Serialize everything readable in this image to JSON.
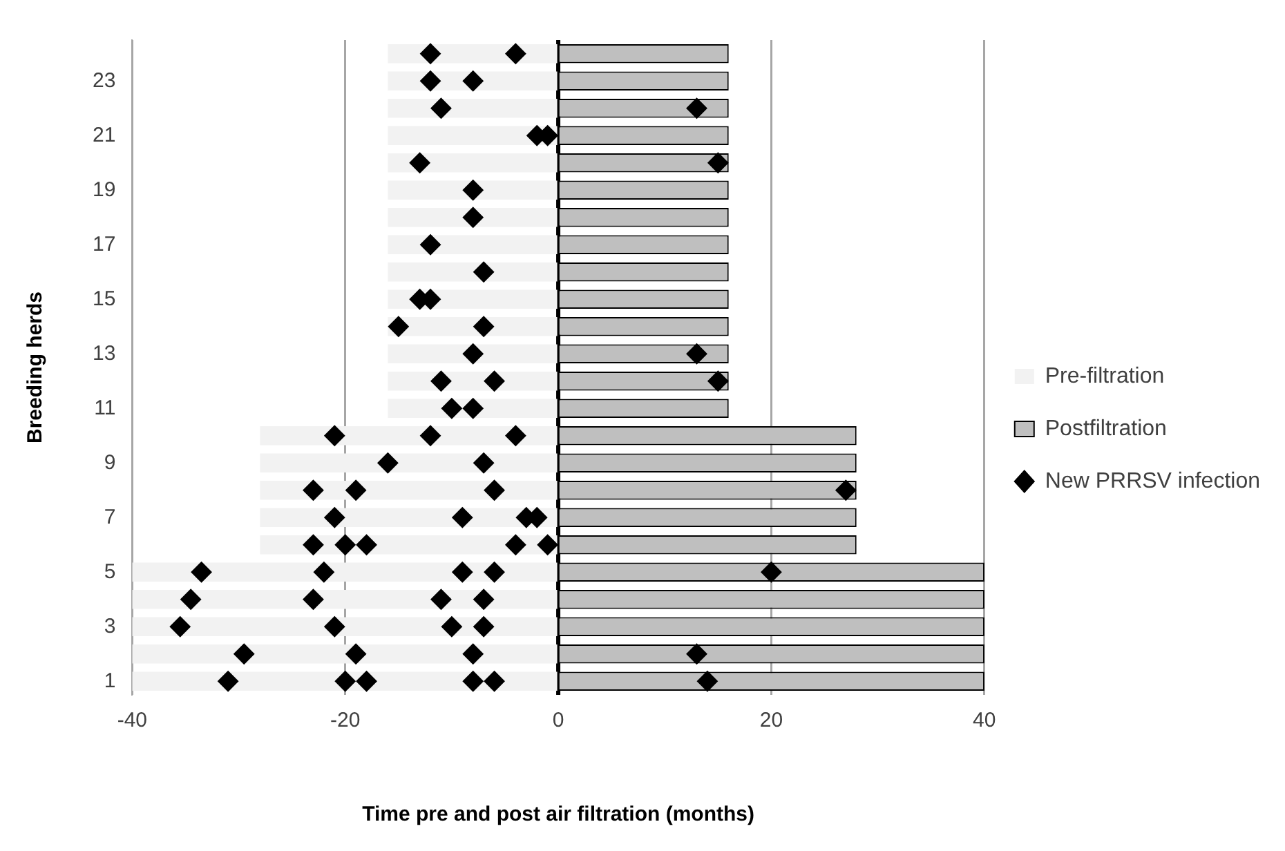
{
  "chart_data": {
    "type": "bar",
    "orientation": "horizontal",
    "stacked": true,
    "xlabel": "Time pre and post air filtration (months)",
    "ylabel": "Breeding herds",
    "categories": [
      null,
      "23",
      null,
      "21",
      null,
      "19",
      null,
      "17",
      null,
      "15",
      null,
      "13",
      null,
      "11",
      null,
      "9",
      null,
      "7",
      null,
      "5",
      null,
      "3",
      null,
      "1"
    ],
    "xlim": [
      -40,
      40
    ],
    "xticks": [
      -40,
      -20,
      0,
      20,
      40
    ],
    "grid": "x",
    "legend": "right",
    "ref_lines": [
      {
        "axis": "x",
        "value": 0,
        "color": "#000000"
      }
    ],
    "series": [
      {
        "name": "Pre-filtration",
        "color": "#f2f2f2",
        "values": [
          -16,
          -16,
          -16,
          -16,
          -16,
          -16,
          -16,
          -16,
          -16,
          -16,
          -16,
          -16,
          -16,
          -16,
          -28,
          -28,
          -28,
          -28,
          -28,
          -40,
          -40,
          -40,
          -40,
          -40
        ]
      },
      {
        "name": "Postfiltration",
        "color": "#bfbfbf",
        "values": [
          16,
          16,
          16,
          16,
          16,
          16,
          16,
          16,
          16,
          16,
          16,
          16,
          16,
          16,
          28,
          28,
          28,
          28,
          28,
          40,
          40,
          40,
          40,
          40
        ]
      },
      {
        "name": "New PRRSV infection",
        "type": "scatter",
        "marker": "diamond",
        "color": "#000000",
        "values": [
          -12,
          -12,
          -11,
          -2,
          -13,
          -8,
          -8,
          -12,
          -7,
          -13,
          -15,
          -8,
          -11,
          -10,
          -21,
          -16,
          -23,
          -21,
          -23,
          -33.5,
          -34.5,
          -35.5,
          -29.5,
          -31
        ]
      },
      {
        "type": "scatter",
        "marker": "diamond",
        "color": "#000000",
        "values": [
          -4,
          -8,
          13,
          -1,
          15,
          null,
          null,
          null,
          null,
          -12,
          -7,
          13,
          -6,
          -8,
          -12,
          -7,
          -19,
          -9,
          -20,
          -22,
          -23,
          -21,
          -19,
          -20
        ]
      },
      {
        "type": "scatter",
        "marker": "diamond",
        "color": "#000000",
        "values": [
          null,
          null,
          null,
          null,
          null,
          null,
          null,
          null,
          null,
          null,
          null,
          null,
          15,
          null,
          -4,
          null,
          -6,
          -3,
          -18,
          -9,
          -11,
          -10,
          -8,
          -18
        ]
      },
      {
        "type": "scatter",
        "marker": "diamond",
        "color": "#000000",
        "values": [
          null,
          null,
          null,
          null,
          null,
          null,
          null,
          null,
          null,
          null,
          null,
          null,
          null,
          null,
          null,
          null,
          27,
          -2,
          -4,
          -6,
          -7,
          -7,
          13,
          -8
        ]
      },
      {
        "type": "scatter",
        "marker": "diamond",
        "color": "#000000",
        "values": [
          null,
          null,
          null,
          null,
          null,
          null,
          null,
          null,
          null,
          null,
          null,
          null,
          null,
          null,
          null,
          null,
          null,
          null,
          -1,
          20,
          null,
          null,
          null,
          -6
        ]
      },
      {
        "type": "scatter",
        "marker": "diamond",
        "color": "#000000",
        "values": [
          null,
          null,
          null,
          null,
          null,
          null,
          null,
          null,
          null,
          null,
          null,
          null,
          null,
          null,
          null,
          null,
          null,
          null,
          null,
          null,
          null,
          null,
          null,
          14
        ]
      }
    ]
  }
}
